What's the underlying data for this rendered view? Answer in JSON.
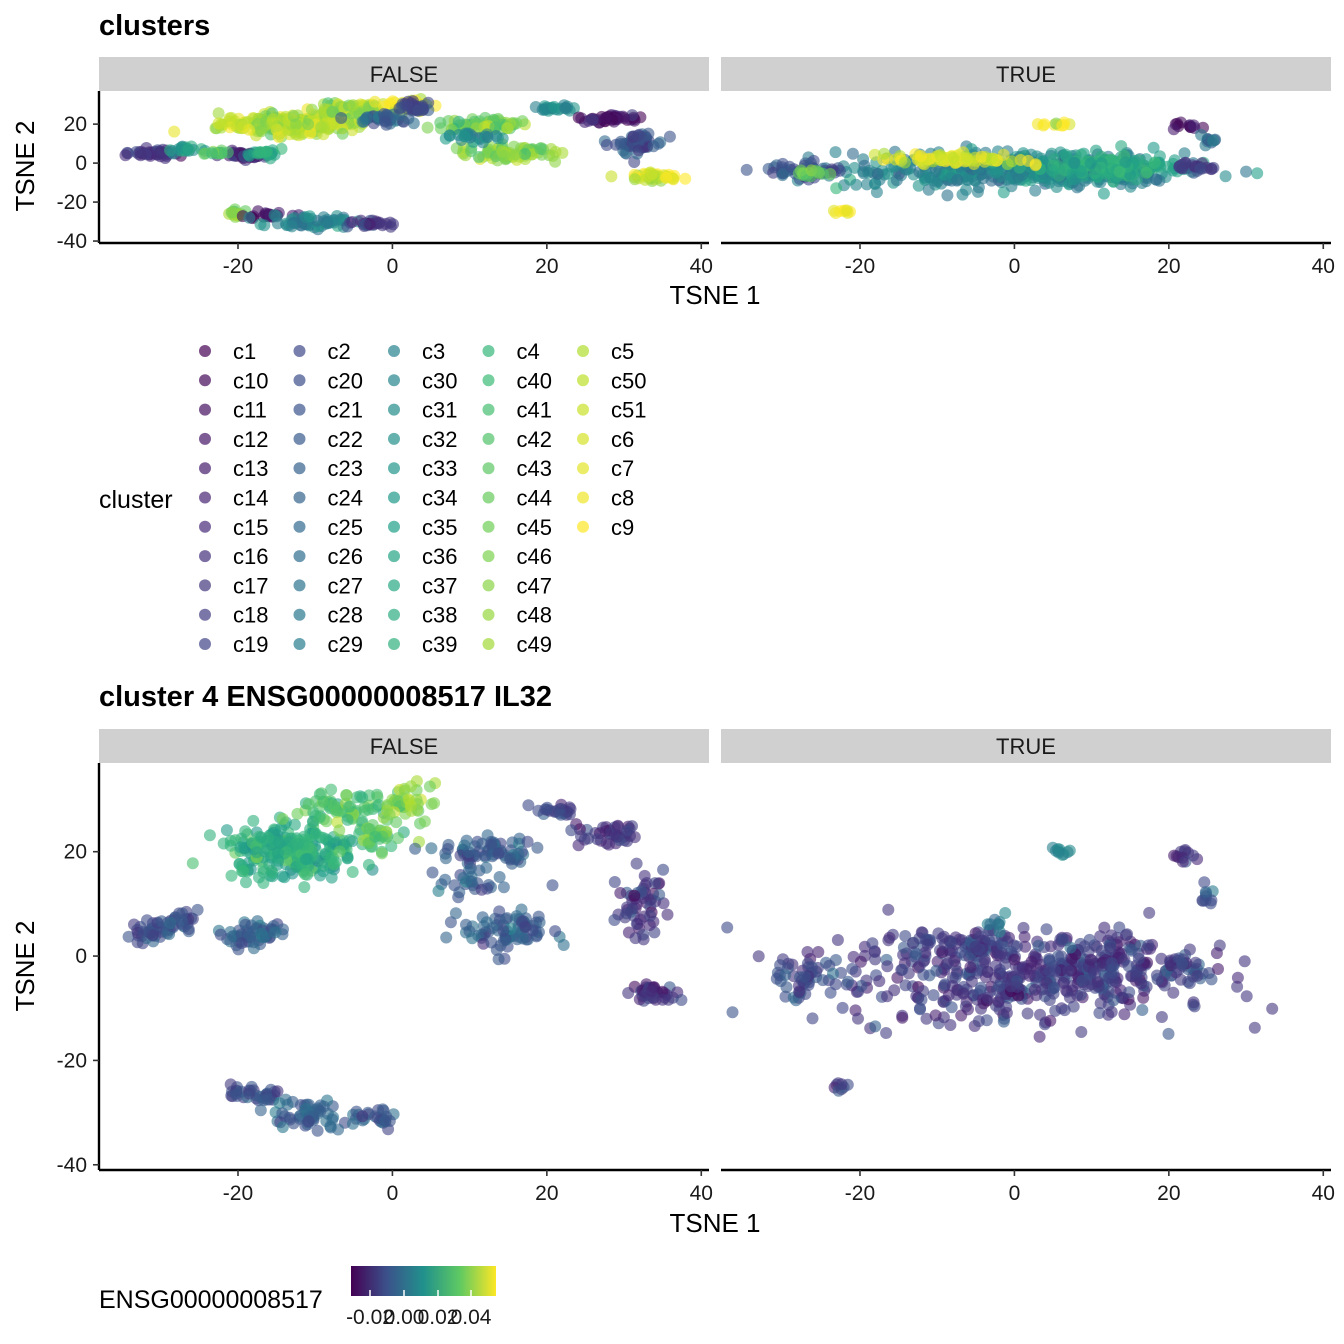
{
  "chart_data": [
    {
      "type": "scatter",
      "title": "clusters",
      "facets": [
        "FALSE",
        "TRUE"
      ],
      "xlabel": "TSNE 1",
      "ylabel": "TSNE 2",
      "xlim": [
        -38,
        41
      ],
      "ylim": [
        -41,
        37
      ],
      "x_ticks": [
        -20,
        0,
        20,
        40
      ],
      "y_ticks": [
        20,
        0,
        -20,
        -40
      ],
      "grid": false,
      "legend": {
        "title": "cluster",
        "placement": "bottom",
        "columns": [
          [
            "c1",
            "c10",
            "c11",
            "c12",
            "c13",
            "c14",
            "c15",
            "c16",
            "c17",
            "c18",
            "c19"
          ],
          [
            "c2",
            "c20",
            "c21",
            "c22",
            "c23",
            "c24",
            "c25",
            "c26",
            "c27",
            "c28",
            "c29"
          ],
          [
            "c3",
            "c30",
            "c31",
            "c32",
            "c33",
            "c34",
            "c35",
            "c36",
            "c37",
            "c38",
            "c39"
          ],
          [
            "c4",
            "c40",
            "c41",
            "c42",
            "c43",
            "c44",
            "c45",
            "c46",
            "c47",
            "c48",
            "c49"
          ],
          [
            "c5",
            "c50",
            "c51",
            "c6",
            "c7",
            "c8",
            "c9"
          ]
        ]
      },
      "palette": [
        "#440154",
        "#482878",
        "#3e4a89",
        "#31688e",
        "#26828e",
        "#1f9e89",
        "#35b779",
        "#6ece58",
        "#b5de2b",
        "#fde725"
      ],
      "series_regions": {
        "FALSE": [
          {
            "cx": -13,
            "cy": 20,
            "rx": 9,
            "ry": 5,
            "n": 240,
            "c": 0.88
          },
          {
            "cx": -6,
            "cy": 28,
            "rx": 6,
            "ry": 3,
            "n": 70,
            "c": 0.85
          },
          {
            "cx": 2,
            "cy": 30,
            "rx": 3,
            "ry": 3,
            "n": 40,
            "c": 0.95
          },
          {
            "cx": -2,
            "cy": 23,
            "rx": 4,
            "ry": 3,
            "n": 35,
            "c": 0.3
          },
          {
            "cx": 3,
            "cy": 28,
            "rx": 2,
            "ry": 4,
            "n": 30,
            "c": 0.2
          },
          {
            "cx": 12,
            "cy": 20,
            "rx": 6,
            "ry": 3,
            "n": 70,
            "c": 0.78
          },
          {
            "cx": 15,
            "cy": 5,
            "rx": 6,
            "ry": 4,
            "n": 80,
            "c": 0.8
          },
          {
            "cx": 10,
            "cy": 14,
            "rx": 4,
            "ry": 3,
            "n": 25,
            "c": 0.45
          },
          {
            "cx": 21,
            "cy": 28,
            "rx": 3,
            "ry": 1.5,
            "n": 22,
            "c": 0.5
          },
          {
            "cx": 28,
            "cy": 23,
            "rx": 4,
            "ry": 2,
            "n": 40,
            "c": 0.05
          },
          {
            "cx": 32,
            "cy": 10,
            "rx": 3,
            "ry": 6,
            "n": 55,
            "c": 0.25
          },
          {
            "cx": 34,
            "cy": -7,
            "rx": 3,
            "ry": 2,
            "n": 40,
            "c": 0.95
          },
          {
            "cx": -31,
            "cy": 5,
            "rx": 3,
            "ry": 2,
            "n": 40,
            "c": 0.15
          },
          {
            "cx": -27,
            "cy": 7,
            "rx": 2,
            "ry": 2,
            "n": 20,
            "c": 0.55
          },
          {
            "cx": -19,
            "cy": 4,
            "rx": 3,
            "ry": 2,
            "n": 35,
            "c": 0.1
          },
          {
            "cx": -16,
            "cy": 5,
            "rx": 2,
            "ry": 2,
            "n": 20,
            "c": 0.6
          },
          {
            "cx": -23,
            "cy": 5,
            "rx": 2,
            "ry": 1,
            "n": 12,
            "c": 0.7
          },
          {
            "cx": -20,
            "cy": -26,
            "rx": 2,
            "ry": 1.5,
            "n": 15,
            "c": 0.8
          },
          {
            "cx": -16,
            "cy": -27,
            "rx": 3,
            "ry": 2,
            "n": 20,
            "c": 0.05
          },
          {
            "cx": -11,
            "cy": -30,
            "rx": 5,
            "ry": 3,
            "n": 55,
            "c": 0.45
          },
          {
            "cx": -2,
            "cy": -31,
            "rx": 3,
            "ry": 2,
            "n": 25,
            "c": 0.15
          }
        ],
        "TRUE": [
          {
            "cx": 0,
            "cy": -4,
            "rx": 22,
            "ry": 9,
            "n": 420,
            "c": 0.45
          },
          {
            "cx": 12,
            "cy": -2,
            "rx": 10,
            "ry": 6,
            "n": 120,
            "c": 0.6
          },
          {
            "cx": -8,
            "cy": 2,
            "rx": 9,
            "ry": 3,
            "n": 70,
            "c": 0.95
          },
          {
            "cx": -27,
            "cy": -4,
            "rx": 5,
            "ry": 4,
            "n": 50,
            "c": 0.25
          },
          {
            "cx": -26,
            "cy": -5,
            "rx": 2,
            "ry": 2,
            "n": 15,
            "c": 0.8
          },
          {
            "cx": 23,
            "cy": -2,
            "rx": 3,
            "ry": 3,
            "n": 25,
            "c": 0.2
          },
          {
            "cx": 5,
            "cy": 20,
            "rx": 2,
            "ry": 1,
            "n": 10,
            "c": 0.98
          },
          {
            "cx": 22,
            "cy": 19,
            "rx": 2,
            "ry": 1.5,
            "n": 12,
            "c": 0.05
          },
          {
            "cx": 25,
            "cy": 12,
            "rx": 1.5,
            "ry": 2,
            "n": 10,
            "c": 0.35
          },
          {
            "cx": -22,
            "cy": -25,
            "rx": 1.5,
            "ry": 1,
            "n": 8,
            "c": 0.98
          }
        ]
      }
    },
    {
      "type": "scatter",
      "title": "cluster 4 ENSG00000008517 IL32",
      "facets": [
        "FALSE",
        "TRUE"
      ],
      "xlabel": "TSNE 1",
      "ylabel": "TSNE 2",
      "xlim": [
        -38,
        41
      ],
      "ylim": [
        -41,
        37
      ],
      "x_ticks": [
        -20,
        0,
        20,
        40
      ],
      "y_ticks": [
        20,
        0,
        -20,
        -40
      ],
      "grid": false,
      "legend": {
        "title": "ENSG00000008517",
        "placement": "bottom",
        "colorbar": [
          "#440154",
          "#3b528b",
          "#21918c",
          "#5ec962",
          "#fde725"
        ],
        "tick_labels": [
          "-0.02",
          "0.00",
          "0.02",
          "0.04"
        ]
      },
      "series_regions": {
        "FALSE": [
          {
            "cx": -13,
            "cy": 20,
            "rx": 9,
            "ry": 5,
            "n": 240,
            "c": 0.62
          },
          {
            "cx": -6,
            "cy": 28,
            "rx": 6,
            "ry": 3,
            "n": 70,
            "c": 0.72
          },
          {
            "cx": 2,
            "cy": 30,
            "rx": 3,
            "ry": 3,
            "n": 40,
            "c": 0.8
          },
          {
            "cx": -2,
            "cy": 23,
            "rx": 4,
            "ry": 3,
            "n": 35,
            "c": 0.75
          },
          {
            "cx": 12,
            "cy": 20,
            "rx": 6,
            "ry": 3,
            "n": 70,
            "c": 0.28
          },
          {
            "cx": 15,
            "cy": 5,
            "rx": 6,
            "ry": 4,
            "n": 80,
            "c": 0.3
          },
          {
            "cx": 10,
            "cy": 14,
            "rx": 4,
            "ry": 3,
            "n": 25,
            "c": 0.28
          },
          {
            "cx": 21,
            "cy": 28,
            "rx": 3,
            "ry": 1.5,
            "n": 22,
            "c": 0.2
          },
          {
            "cx": 28,
            "cy": 23,
            "rx": 4,
            "ry": 2,
            "n": 40,
            "c": 0.15
          },
          {
            "cx": 32,
            "cy": 10,
            "rx": 3,
            "ry": 6,
            "n": 55,
            "c": 0.15
          },
          {
            "cx": 34,
            "cy": -7,
            "rx": 3,
            "ry": 2,
            "n": 40,
            "c": 0.15
          },
          {
            "cx": -31,
            "cy": 5,
            "rx": 3,
            "ry": 2,
            "n": 40,
            "c": 0.25
          },
          {
            "cx": -27,
            "cy": 7,
            "rx": 2,
            "ry": 2,
            "n": 20,
            "c": 0.25
          },
          {
            "cx": -19,
            "cy": 4,
            "rx": 3,
            "ry": 2,
            "n": 35,
            "c": 0.3
          },
          {
            "cx": -16,
            "cy": 5,
            "rx": 2,
            "ry": 2,
            "n": 20,
            "c": 0.3
          },
          {
            "cx": -20,
            "cy": -26,
            "rx": 2,
            "ry": 1.5,
            "n": 15,
            "c": 0.25
          },
          {
            "cx": -16,
            "cy": -27,
            "rx": 3,
            "ry": 2,
            "n": 20,
            "c": 0.28
          },
          {
            "cx": -11,
            "cy": -30,
            "rx": 5,
            "ry": 3,
            "n": 55,
            "c": 0.3
          },
          {
            "cx": -2,
            "cy": -31,
            "rx": 3,
            "ry": 2,
            "n": 25,
            "c": 0.25
          }
        ],
        "TRUE": [
          {
            "cx": 0,
            "cy": -4,
            "rx": 22,
            "ry": 9,
            "n": 420,
            "c": 0.17
          },
          {
            "cx": 12,
            "cy": -2,
            "rx": 10,
            "ry": 6,
            "n": 120,
            "c": 0.17
          },
          {
            "cx": -8,
            "cy": 2,
            "rx": 9,
            "ry": 3,
            "n": 70,
            "c": 0.18
          },
          {
            "cx": -27,
            "cy": -4,
            "rx": 5,
            "ry": 4,
            "n": 50,
            "c": 0.22
          },
          {
            "cx": 23,
            "cy": -2,
            "rx": 3,
            "ry": 3,
            "n": 25,
            "c": 0.2
          },
          {
            "cx": 6,
            "cy": 20,
            "rx": 1.5,
            "ry": 1,
            "n": 10,
            "c": 0.45
          },
          {
            "cx": -2,
            "cy": 7,
            "rx": 1.5,
            "ry": 1.5,
            "n": 8,
            "c": 0.42
          },
          {
            "cx": 22,
            "cy": 19,
            "rx": 2,
            "ry": 1.5,
            "n": 12,
            "c": 0.15
          },
          {
            "cx": 25,
            "cy": 12,
            "rx": 1.5,
            "ry": 2,
            "n": 10,
            "c": 0.25
          },
          {
            "cx": -22,
            "cy": -25,
            "rx": 1.5,
            "ry": 1,
            "n": 8,
            "c": 0.2
          }
        ]
      }
    }
  ]
}
